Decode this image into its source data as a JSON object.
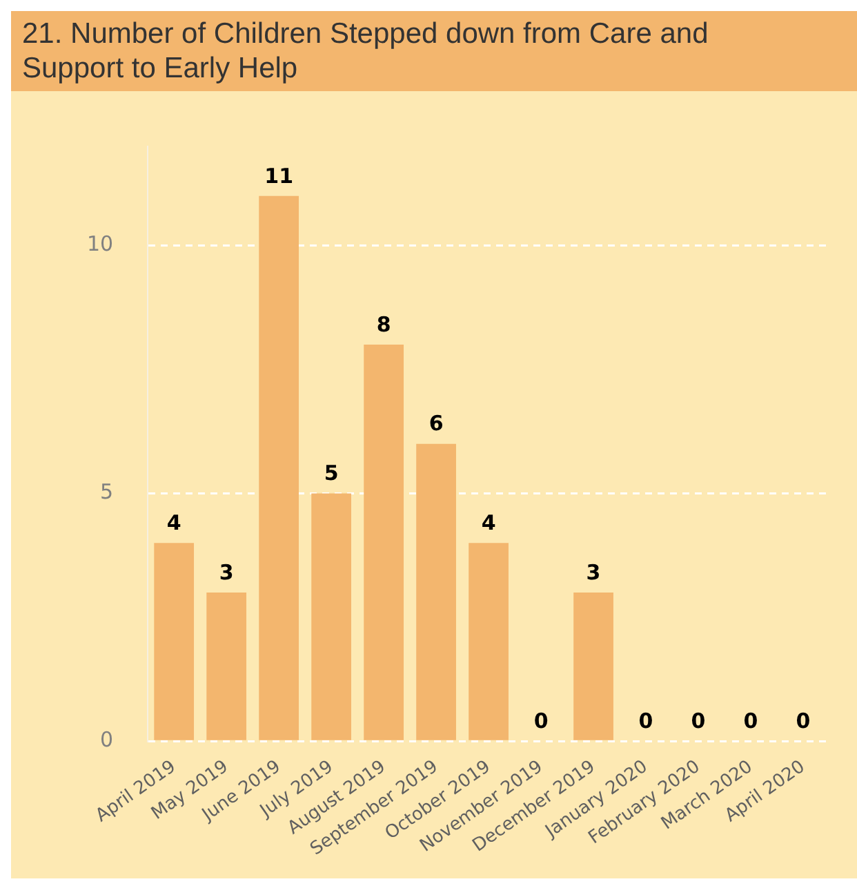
{
  "chart_data": {
    "type": "bar",
    "title": "21. Number of Children Stepped down from Care and Support to Early Help",
    "categories": [
      "April 2019",
      "May 2019",
      "June 2019",
      "July 2019",
      "August 2019",
      "September 2019",
      "October 2019",
      "November 2019",
      "December 2019",
      "January 2020",
      "February 2020",
      "March 2020",
      "April 2020"
    ],
    "values": [
      4,
      3,
      11,
      5,
      8,
      6,
      4,
      0,
      3,
      0,
      0,
      0,
      0
    ],
    "color": "#f3b66e",
    "ylim": [
      0,
      12
    ],
    "yticks": [
      0,
      5,
      10
    ],
    "grid": "y",
    "data_labels": true,
    "legend": false
  }
}
